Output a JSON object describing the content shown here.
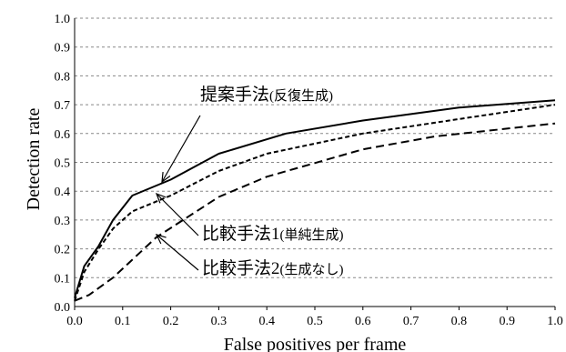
{
  "chart_data": {
    "type": "line",
    "title": "",
    "xlabel": "False positives per frame",
    "ylabel": "Detection rate",
    "xlim": [
      0.0,
      1.0
    ],
    "ylim": [
      0.0,
      1.0
    ],
    "x_ticks": [
      "0.0",
      "0.1",
      "0.2",
      "0.3",
      "0.4",
      "0.5",
      "0.6",
      "0.7",
      "0.8",
      "0.9",
      "1.0"
    ],
    "y_ticks": [
      "0.0",
      "0.1",
      "0.2",
      "0.3",
      "0.4",
      "0.5",
      "0.6",
      "0.7",
      "0.8",
      "0.9",
      "1.0"
    ],
    "grid": "horizontal dashed",
    "legend": "none",
    "series": [
      {
        "name": "提案手法(反復生成)",
        "style": "solid",
        "color": "#000000",
        "points": [
          [
            0.0,
            0.03
          ],
          [
            0.02,
            0.14
          ],
          [
            0.05,
            0.21
          ],
          [
            0.08,
            0.3
          ],
          [
            0.12,
            0.385
          ],
          [
            0.2,
            0.44
          ],
          [
            0.3,
            0.53
          ],
          [
            0.44,
            0.6
          ],
          [
            0.6,
            0.645
          ],
          [
            0.8,
            0.69
          ],
          [
            1.0,
            0.715
          ]
        ]
      },
      {
        "name": "比較手法1(単純生成)",
        "style": "short-dash",
        "color": "#000000",
        "points": [
          [
            0.0,
            0.02
          ],
          [
            0.02,
            0.12
          ],
          [
            0.05,
            0.2
          ],
          [
            0.08,
            0.27
          ],
          [
            0.12,
            0.33
          ],
          [
            0.2,
            0.385
          ],
          [
            0.3,
            0.47
          ],
          [
            0.4,
            0.53
          ],
          [
            0.6,
            0.6
          ],
          [
            0.8,
            0.65
          ],
          [
            1.0,
            0.7
          ]
        ]
      },
      {
        "name": "比較手法2(生成なし)",
        "style": "long-dash",
        "color": "#000000",
        "points": [
          [
            0.0,
            0.02
          ],
          [
            0.03,
            0.04
          ],
          [
            0.08,
            0.1
          ],
          [
            0.17,
            0.24
          ],
          [
            0.3,
            0.38
          ],
          [
            0.4,
            0.45
          ],
          [
            0.6,
            0.545
          ],
          [
            0.75,
            0.59
          ],
          [
            1.0,
            0.635
          ]
        ]
      }
    ],
    "annotations": [
      {
        "main": "提案手法",
        "sub": "(反復生成)",
        "series": 0
      },
      {
        "main": "比較手法1",
        "sub": "(単純生成)",
        "series": 1
      },
      {
        "main": "比較手法2",
        "sub": "(生成なし)",
        "series": 2
      }
    ]
  }
}
